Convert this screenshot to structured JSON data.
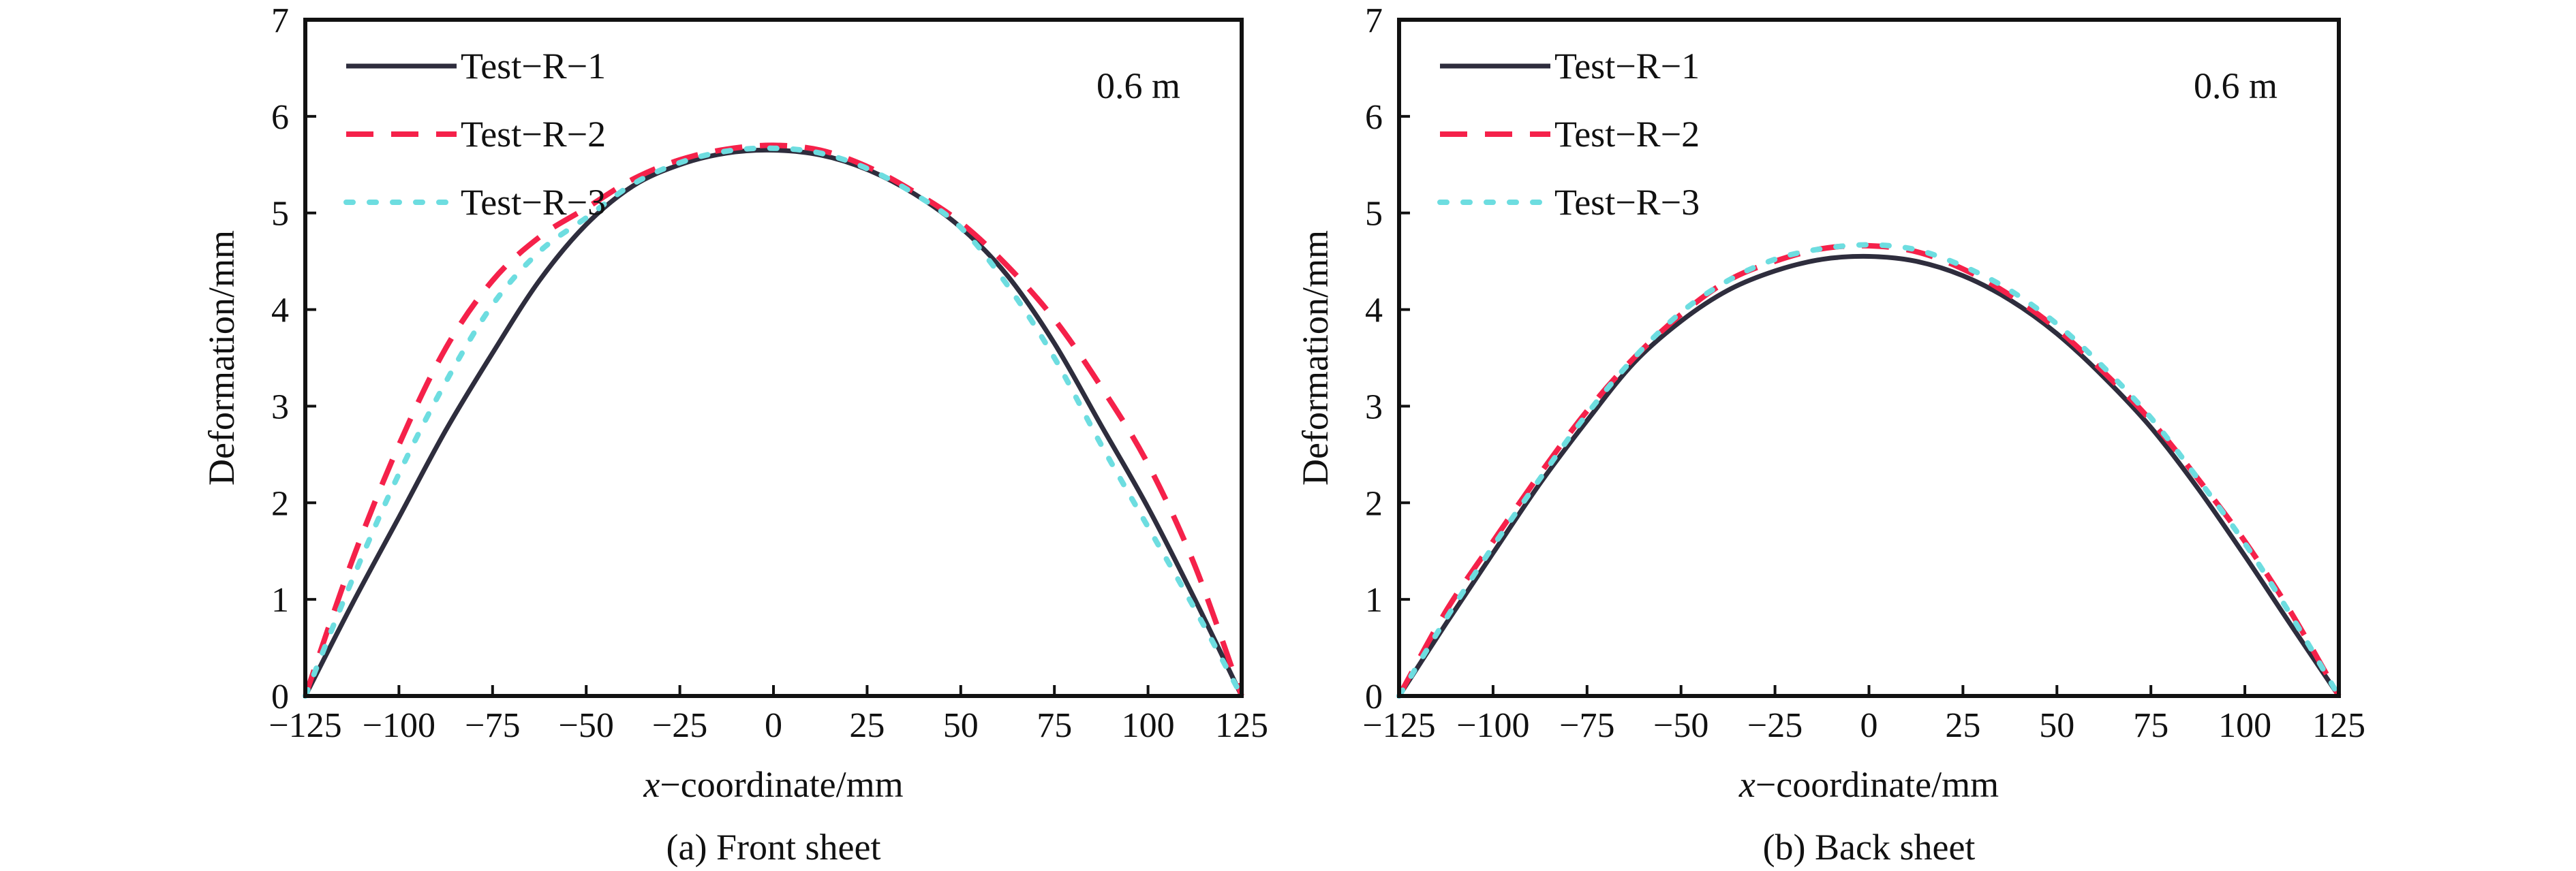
{
  "chart_data": [
    {
      "type": "line",
      "title": "",
      "caption": "(a) Front sheet",
      "xlabel_italic": "x",
      "xlabel_rest": "−coordinate/mm",
      "ylabel": "Deformation/mm",
      "annotation": "0.6 m",
      "xlim": [
        -125,
        125
      ],
      "ylim": [
        0,
        7
      ],
      "xticks": [
        -125,
        -100,
        -75,
        -50,
        -25,
        0,
        25,
        50,
        75,
        100,
        125
      ],
      "xtick_labels": [
        "−125",
        "−100",
        "−75",
        "−50",
        "−25",
        "0",
        "25",
        "50",
        "75",
        "100",
        "125"
      ],
      "yticks": [
        0,
        1,
        2,
        3,
        4,
        5,
        6,
        7
      ],
      "ytick_labels": [
        "0",
        "1",
        "2",
        "3",
        "4",
        "5",
        "6",
        "7"
      ],
      "grid": false,
      "legend_position": "top-left",
      "x": [
        -125,
        -112.5,
        -100,
        -87.5,
        -75,
        -62.5,
        -50,
        -37.5,
        -25,
        -12.5,
        0,
        12.5,
        25,
        37.5,
        50,
        62.5,
        75,
        87.5,
        100,
        112.5,
        125
      ],
      "series": [
        {
          "name": "Test−R−1",
          "style": "solid",
          "color": "#2e2d3d",
          "values": [
            0.0,
            0.95,
            1.85,
            2.75,
            3.55,
            4.3,
            4.88,
            5.28,
            5.5,
            5.62,
            5.65,
            5.6,
            5.45,
            5.2,
            4.85,
            4.35,
            3.65,
            2.8,
            1.95,
            1.0,
            0.0
          ]
        },
        {
          "name": "Test−R−2",
          "style": "dashed",
          "color": "#f5214a",
          "values": [
            0.0,
            1.4,
            2.6,
            3.6,
            4.3,
            4.75,
            5.05,
            5.35,
            5.55,
            5.66,
            5.7,
            5.65,
            5.48,
            5.22,
            4.9,
            4.45,
            3.9,
            3.2,
            2.4,
            1.35,
            0.0
          ]
        },
        {
          "name": "Test−R−3",
          "style": "dotted",
          "color": "#6ddde0",
          "values": [
            0.0,
            1.2,
            2.3,
            3.25,
            4.05,
            4.6,
            4.95,
            5.3,
            5.52,
            5.64,
            5.67,
            5.62,
            5.46,
            5.2,
            4.85,
            4.25,
            3.5,
            2.6,
            1.75,
            0.9,
            0.0
          ]
        }
      ]
    },
    {
      "type": "line",
      "title": "",
      "caption": "(b) Back sheet",
      "xlabel_italic": "x",
      "xlabel_rest": "−coordinate/mm",
      "ylabel": "Deformation/mm",
      "annotation": "0.6 m",
      "xlim": [
        -125,
        125
      ],
      "ylim": [
        0,
        7
      ],
      "xticks": [
        -125,
        -100,
        -75,
        -50,
        -25,
        0,
        25,
        50,
        75,
        100,
        125
      ],
      "xtick_labels": [
        "−125",
        "−100",
        "−75",
        "−50",
        "−25",
        "0",
        "25",
        "50",
        "75",
        "100",
        "125"
      ],
      "yticks": [
        0,
        1,
        2,
        3,
        4,
        5,
        6,
        7
      ],
      "ytick_labels": [
        "0",
        "1",
        "2",
        "3",
        "4",
        "5",
        "6",
        "7"
      ],
      "grid": false,
      "legend_position": "top-left",
      "x": [
        -125,
        -112.5,
        -100,
        -87.5,
        -75,
        -62.5,
        -50,
        -37.5,
        -25,
        -12.5,
        0,
        12.5,
        25,
        37.5,
        50,
        62.5,
        75,
        87.5,
        100,
        112.5,
        125
      ],
      "series": [
        {
          "name": "Test−R−1",
          "style": "solid",
          "color": "#2e2d3d",
          "values": [
            0.0,
            0.75,
            1.48,
            2.2,
            2.85,
            3.45,
            3.88,
            4.2,
            4.4,
            4.52,
            4.55,
            4.5,
            4.35,
            4.1,
            3.75,
            3.3,
            2.78,
            2.15,
            1.45,
            0.72,
            0.0
          ]
        },
        {
          "name": "Test−R−2",
          "style": "dashed",
          "color": "#f5214a",
          "values": [
            0.0,
            0.88,
            1.6,
            2.3,
            2.95,
            3.5,
            3.95,
            4.3,
            4.5,
            4.63,
            4.66,
            4.6,
            4.42,
            4.15,
            3.8,
            3.35,
            2.85,
            2.25,
            1.6,
            0.85,
            0.0
          ]
        },
        {
          "name": "Test−R−3",
          "style": "dotted",
          "color": "#6ddde0",
          "values": [
            0.0,
            0.8,
            1.55,
            2.25,
            2.92,
            3.5,
            3.97,
            4.3,
            4.52,
            4.63,
            4.67,
            4.62,
            4.45,
            4.2,
            3.85,
            3.4,
            2.88,
            2.25,
            1.58,
            0.82,
            0.0
          ]
        }
      ]
    }
  ]
}
